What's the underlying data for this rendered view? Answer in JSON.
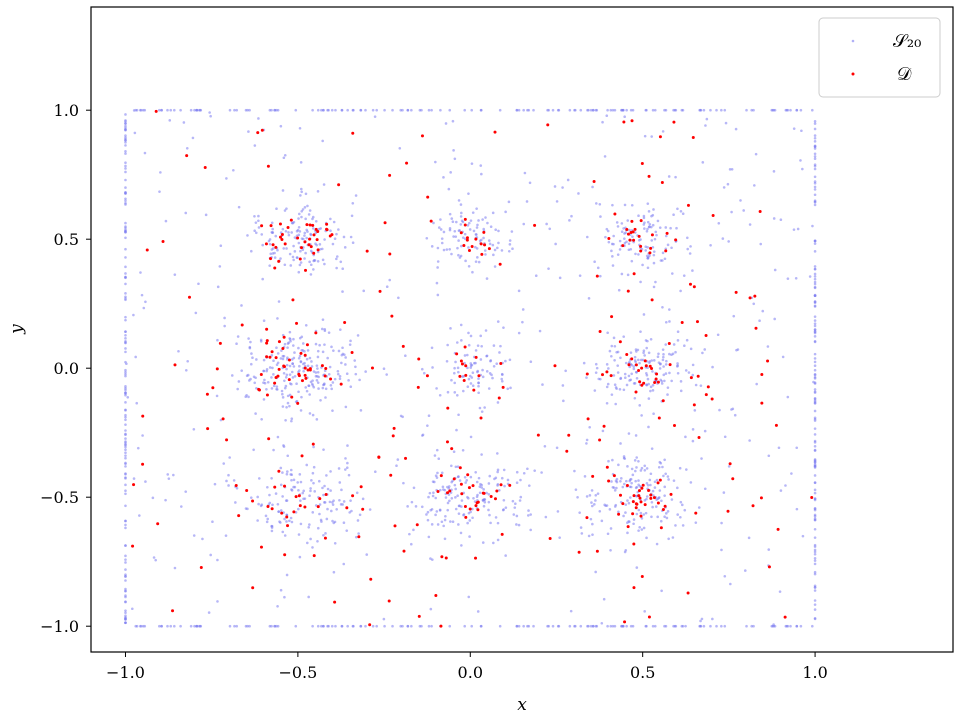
{
  "chart_data": {
    "type": "scatter",
    "xlabel": "x",
    "ylabel": "y",
    "xlim": [
      -1.1,
      1.4
    ],
    "ylim": [
      -1.1,
      1.4
    ],
    "xticks": [
      -1.0,
      -0.5,
      0.0,
      0.5,
      1.0
    ],
    "xtick_labels": [
      "−1.0",
      "−0.5",
      "0.0",
      "0.5",
      "1.0"
    ],
    "yticks": [
      -1.0,
      -0.5,
      0.0,
      0.5,
      1.0
    ],
    "ytick_labels": [
      "−1.0",
      "−0.5",
      "0.0",
      "0.5",
      "1.0"
    ],
    "grid": false,
    "legend_position": "top-right",
    "series": [
      {
        "name": "𝒮₂₀",
        "color": "#7b7bf0",
        "marker": "small-dot",
        "clusters": [
          {
            "center": [
              -0.5,
              0.5
            ],
            "spread": 0.07,
            "count": 150
          },
          {
            "center": [
              -0.5,
              0.0
            ],
            "spread": 0.08,
            "count": 220
          },
          {
            "center": [
              -0.5,
              -0.5
            ],
            "spread": 0.09,
            "count": 140
          },
          {
            "center": [
              0.0,
              0.5
            ],
            "spread": 0.06,
            "count": 90
          },
          {
            "center": [
              0.0,
              0.0
            ],
            "spread": 0.06,
            "count": 80
          },
          {
            "center": [
              0.0,
              -0.5
            ],
            "spread": 0.08,
            "count": 160
          },
          {
            "center": [
              0.5,
              0.5
            ],
            "spread": 0.07,
            "count": 120
          },
          {
            "center": [
              0.5,
              0.0
            ],
            "spread": 0.07,
            "count": 150
          },
          {
            "center": [
              0.5,
              -0.5
            ],
            "spread": 0.08,
            "count": 170
          }
        ],
        "boundary_points_per_edge": 140,
        "background_points": 380
      },
      {
        "name": "𝒟",
        "color": "#ff0000",
        "marker": "small-dot",
        "clusters": [
          {
            "center": [
              -0.5,
              0.5
            ],
            "spread": 0.05,
            "count": 30
          },
          {
            "center": [
              -0.5,
              0.0
            ],
            "spread": 0.05,
            "count": 35
          },
          {
            "center": [
              -0.5,
              -0.5
            ],
            "spread": 0.06,
            "count": 18
          },
          {
            "center": [
              0.0,
              0.5
            ],
            "spread": 0.04,
            "count": 14
          },
          {
            "center": [
              0.0,
              0.0
            ],
            "spread": 0.04,
            "count": 10
          },
          {
            "center": [
              0.0,
              -0.5
            ],
            "spread": 0.05,
            "count": 22
          },
          {
            "center": [
              0.5,
              0.5
            ],
            "spread": 0.05,
            "count": 20
          },
          {
            "center": [
              0.5,
              0.0
            ],
            "spread": 0.05,
            "count": 18
          },
          {
            "center": [
              0.5,
              -0.5
            ],
            "spread": 0.05,
            "count": 30
          }
        ],
        "background_points": 190
      }
    ]
  }
}
